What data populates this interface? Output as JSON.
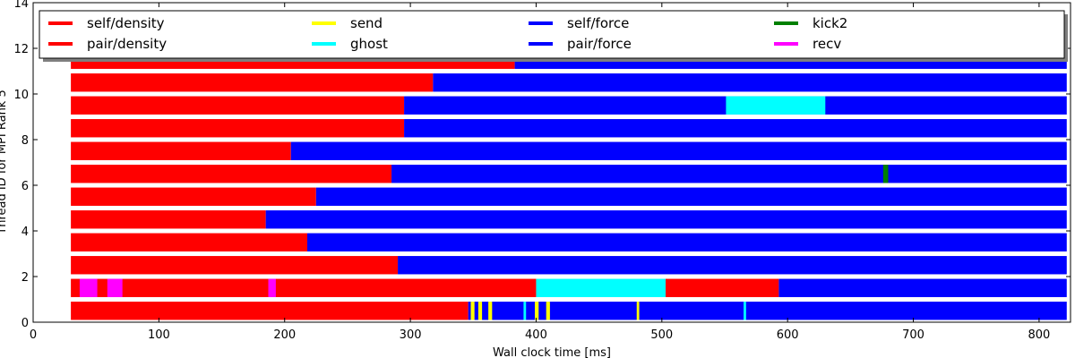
{
  "chart_data": {
    "type": "bar",
    "subtype": "gantt-task-timeline",
    "title": "",
    "xlabel": "Wall clock time [ms]",
    "ylabel": "Thread ID for MPI Rank 5",
    "xlim": [
      0,
      825
    ],
    "ylim": [
      0,
      14
    ],
    "x_ticks": [
      0,
      100,
      200,
      300,
      400,
      500,
      600,
      700,
      800
    ],
    "y_ticks": [
      0,
      2,
      4,
      6,
      8,
      10,
      12,
      14
    ],
    "grid": false,
    "legend_position": "top",
    "legend": [
      {
        "name": "self/density",
        "color": "#ff0000"
      },
      {
        "name": "pair/density",
        "color": "#ff0000"
      },
      {
        "name": "send",
        "color": "#ffff00"
      },
      {
        "name": "ghost",
        "color": "#00ffff"
      },
      {
        "name": "self/force",
        "color": "#0000ff"
      },
      {
        "name": "pair/force",
        "color": "#0000ff"
      },
      {
        "name": "kick2",
        "color": "#008000"
      },
      {
        "name": "recv",
        "color": "#ff00ff"
      }
    ],
    "colors": {
      "density": "#ff0000",
      "force": "#0000ff",
      "send": "#ffff00",
      "ghost": "#00ffff",
      "kick2": "#008000",
      "recv": "#ff00ff"
    },
    "threads": [
      {
        "thread": 0,
        "tasks": [
          {
            "task": "density",
            "start": 30,
            "end": 346
          },
          {
            "task": "force",
            "start": 346,
            "end": 822
          },
          {
            "task": "send",
            "start": 348,
            "end": 351
          },
          {
            "task": "send",
            "start": 354,
            "end": 357
          },
          {
            "task": "send",
            "start": 362,
            "end": 365
          },
          {
            "task": "send",
            "start": 399,
            "end": 402
          },
          {
            "task": "send",
            "start": 408,
            "end": 411
          },
          {
            "task": "send",
            "start": 480,
            "end": 482
          },
          {
            "task": "ghost",
            "start": 390,
            "end": 392
          },
          {
            "task": "ghost",
            "start": 565,
            "end": 567
          }
        ]
      },
      {
        "thread": 1,
        "tasks": [
          {
            "task": "density",
            "start": 30,
            "end": 400
          },
          {
            "task": "recv",
            "start": 37,
            "end": 51
          },
          {
            "task": "recv",
            "start": 59,
            "end": 71
          },
          {
            "task": "recv",
            "start": 187,
            "end": 193
          },
          {
            "task": "ghost",
            "start": 400,
            "end": 503
          },
          {
            "task": "density",
            "start": 503,
            "end": 593
          },
          {
            "task": "force",
            "start": 593,
            "end": 822
          }
        ]
      },
      {
        "thread": 2,
        "tasks": [
          {
            "task": "density",
            "start": 30,
            "end": 290
          },
          {
            "task": "force",
            "start": 290,
            "end": 822
          }
        ]
      },
      {
        "thread": 3,
        "tasks": [
          {
            "task": "density",
            "start": 30,
            "end": 218
          },
          {
            "task": "force",
            "start": 218,
            "end": 822
          }
        ]
      },
      {
        "thread": 4,
        "tasks": [
          {
            "task": "density",
            "start": 30,
            "end": 185
          },
          {
            "task": "force",
            "start": 185,
            "end": 822
          }
        ]
      },
      {
        "thread": 5,
        "tasks": [
          {
            "task": "density",
            "start": 30,
            "end": 225
          },
          {
            "task": "force",
            "start": 225,
            "end": 822
          }
        ]
      },
      {
        "thread": 6,
        "tasks": [
          {
            "task": "density",
            "start": 30,
            "end": 285
          },
          {
            "task": "force",
            "start": 285,
            "end": 822
          },
          {
            "task": "kick2",
            "start": 676,
            "end": 680
          }
        ]
      },
      {
        "thread": 7,
        "tasks": [
          {
            "task": "density",
            "start": 30,
            "end": 205
          },
          {
            "task": "force",
            "start": 205,
            "end": 822
          }
        ]
      },
      {
        "thread": 8,
        "tasks": [
          {
            "task": "density",
            "start": 30,
            "end": 295
          },
          {
            "task": "force",
            "start": 295,
            "end": 822
          }
        ]
      },
      {
        "thread": 9,
        "tasks": [
          {
            "task": "density",
            "start": 30,
            "end": 295
          },
          {
            "task": "force",
            "start": 295,
            "end": 822
          },
          {
            "task": "ghost",
            "start": 551,
            "end": 630
          }
        ]
      },
      {
        "thread": 10,
        "tasks": [
          {
            "task": "density",
            "start": 30,
            "end": 318
          },
          {
            "task": "force",
            "start": 318,
            "end": 822
          }
        ]
      },
      {
        "thread": 11,
        "tasks": [
          {
            "task": "density",
            "start": 30,
            "end": 383
          },
          {
            "task": "force",
            "start": 383,
            "end": 822
          }
        ]
      }
    ]
  }
}
